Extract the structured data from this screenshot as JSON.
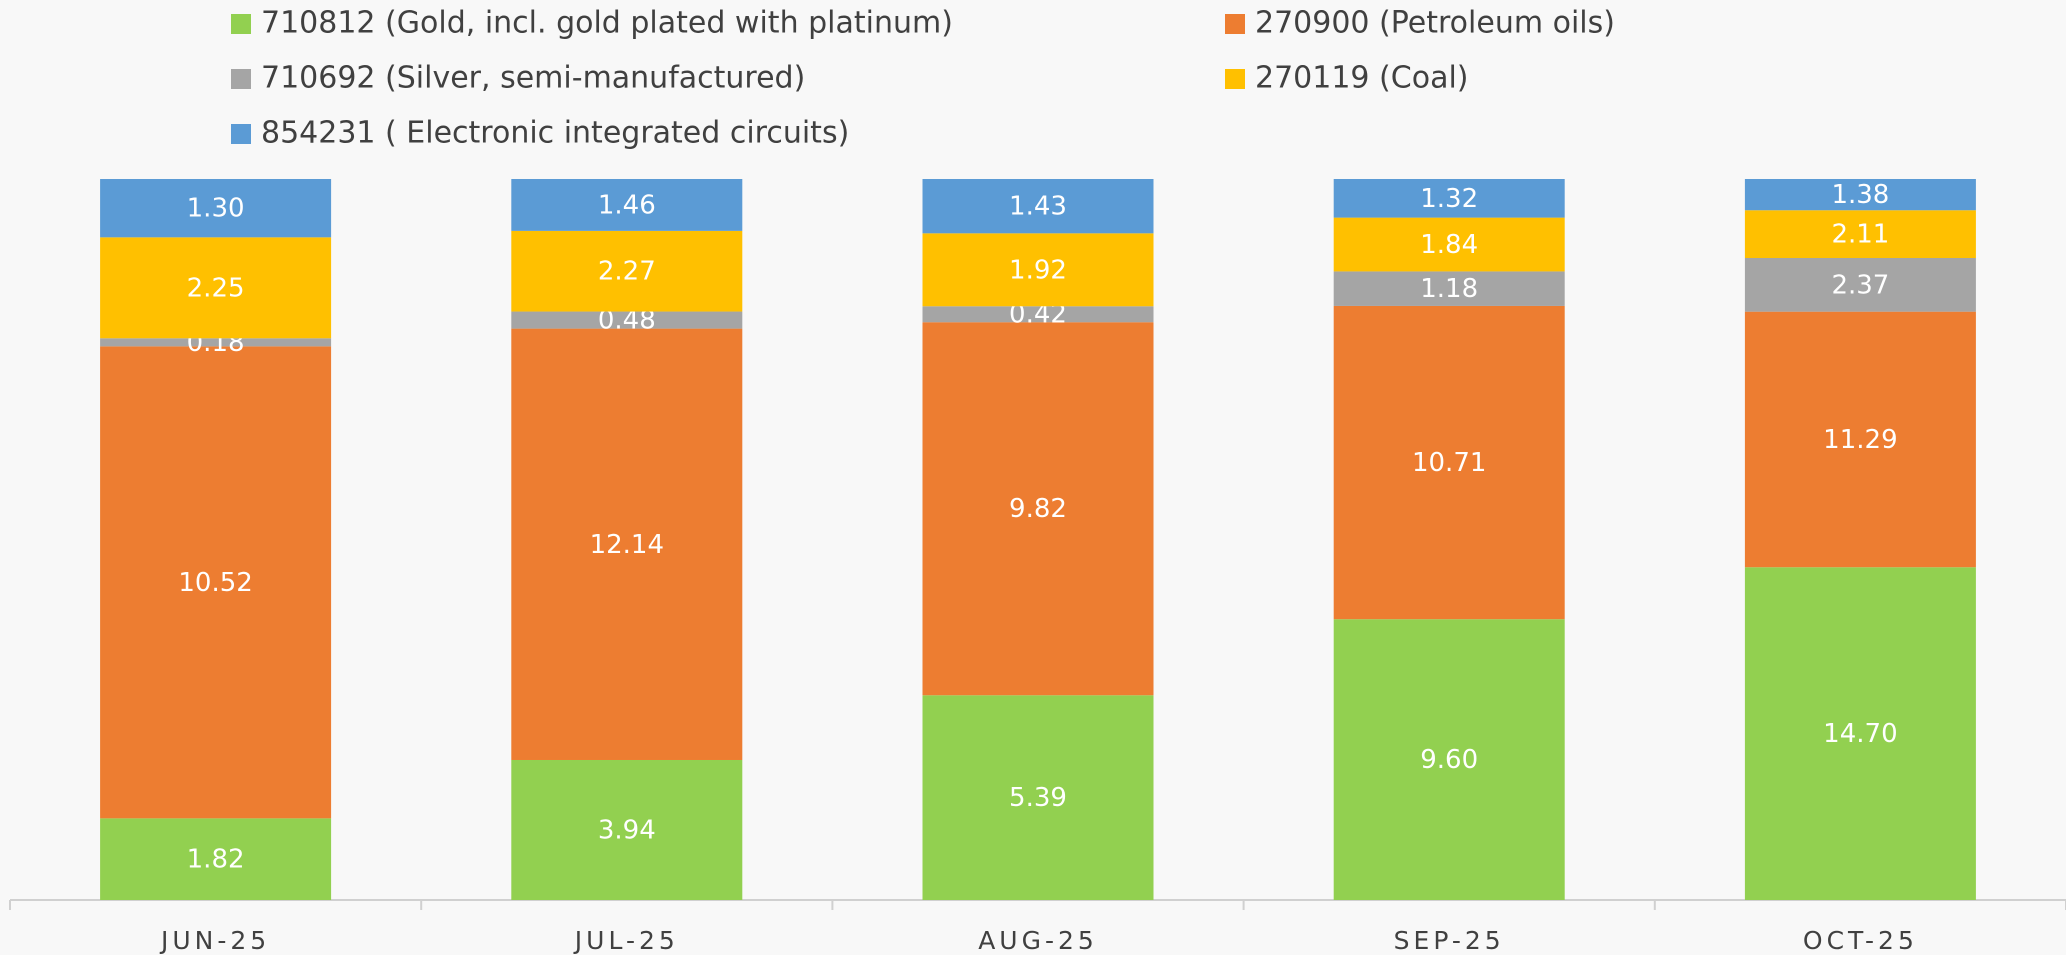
{
  "chart_data": {
    "type": "bar",
    "stacking": "percent",
    "categories": [
      "JUN-25",
      "JUL-25",
      "AUG-25",
      "SEP-25",
      "OCT-25"
    ],
    "series": [
      {
        "name": "710812 (Gold, incl. gold plated with platinum)",
        "color": "#92d050",
        "values": [
          1.82,
          3.94,
          5.39,
          9.6,
          14.7
        ],
        "value_labels": [
          "1.82",
          "3.94",
          "5.39",
          "9.60",
          "14.70"
        ]
      },
      {
        "name": "270900 (Petroleum oils)",
        "color": "#ed7d31",
        "values": [
          10.52,
          12.14,
          9.82,
          10.71,
          11.29
        ],
        "value_labels": [
          "10.52",
          "12.14",
          "9.82",
          "10.71",
          "11.29"
        ]
      },
      {
        "name": "710692 (Silver, semi-manufactured)",
        "color": "#a5a5a5",
        "values": [
          0.18,
          0.48,
          0.42,
          1.18,
          2.37
        ],
        "value_labels": [
          "0.18",
          "0.48",
          "0.42",
          "1.18",
          "2.37"
        ]
      },
      {
        "name": "270119 (Coal)",
        "color": "#ffc000",
        "values": [
          2.25,
          2.27,
          1.92,
          1.84,
          2.11
        ],
        "value_labels": [
          "2.25",
          "2.27",
          "1.92",
          "1.84",
          "2.11"
        ]
      },
      {
        "name": "854231 ( Electronic integrated circuits)",
        "color": "#5b9bd5",
        "values": [
          1.3,
          1.46,
          1.43,
          1.32,
          1.38
        ],
        "value_labels": [
          "1.30",
          "1.46",
          "1.43",
          "1.32",
          "1.38"
        ]
      }
    ],
    "legend": "top"
  }
}
